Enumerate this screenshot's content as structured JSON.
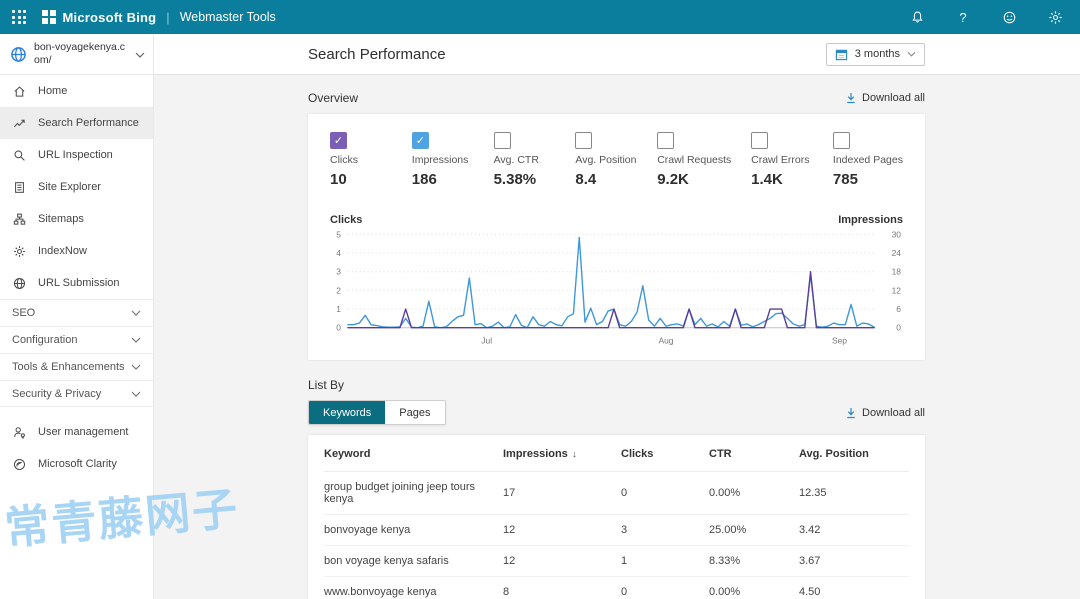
{
  "topbar": {
    "brand": "Microsoft Bing",
    "product": "Webmaster Tools",
    "icons": [
      "notifications-bell",
      "help",
      "feedback-smiley",
      "settings-gear"
    ]
  },
  "sidebar": {
    "site": {
      "name": "bon-voyagekenya.com/",
      "icon": "site-globe-icon"
    },
    "items": [
      {
        "label": "Home",
        "icon": "home-icon",
        "active": false
      },
      {
        "label": "Search Performance",
        "icon": "trend-icon",
        "active": true
      },
      {
        "label": "URL Inspection",
        "icon": "magnifier-icon",
        "active": false
      },
      {
        "label": "Site Explorer",
        "icon": "document-icon",
        "active": false
      },
      {
        "label": "Sitemaps",
        "icon": "sitemap-icon",
        "active": false
      },
      {
        "label": "IndexNow",
        "icon": "gear-small-icon",
        "active": false
      },
      {
        "label": "URL Submission",
        "icon": "globe-icon",
        "active": false
      }
    ],
    "sections": [
      {
        "label": "SEO"
      },
      {
        "label": "Configuration"
      },
      {
        "label": "Tools & Enhancements"
      },
      {
        "label": "Security & Privacy"
      }
    ],
    "footer_items": [
      {
        "label": "User management",
        "icon": "person-icon"
      },
      {
        "label": "Microsoft Clarity",
        "icon": "clarity-icon"
      }
    ]
  },
  "header": {
    "title": "Search Performance",
    "date_range": "3 months"
  },
  "overview": {
    "label": "Overview",
    "download_label": "Download all",
    "metrics": [
      {
        "label": "Clicks",
        "value": "10",
        "checked": true,
        "color": "#7a5fb4"
      },
      {
        "label": "Impressions",
        "value": "186",
        "checked": true,
        "color": "#4ea3e0"
      },
      {
        "label": "Avg. CTR",
        "value": "5.38%",
        "checked": false,
        "color": ""
      },
      {
        "label": "Avg. Position",
        "value": "8.4",
        "checked": false,
        "color": ""
      },
      {
        "label": "Crawl Requests",
        "value": "9.2K",
        "checked": false,
        "color": ""
      },
      {
        "label": "Crawl Errors",
        "value": "1.4K",
        "checked": false,
        "color": ""
      },
      {
        "label": "Indexed Pages",
        "value": "785",
        "checked": false,
        "color": ""
      }
    ]
  },
  "chart_data": {
    "type": "line",
    "title": "Clicks and Impressions over 3 months (daily)",
    "grid": "dotted-horizontal",
    "legend_position": "top-corners",
    "left_axis": {
      "label": "Clicks",
      "ticks": [
        0,
        1,
        2,
        3,
        4,
        5
      ],
      "max": 5
    },
    "right_axis": {
      "label": "Impressions",
      "ticks": [
        0,
        6,
        12,
        18,
        24,
        30
      ],
      "max": 30
    },
    "month_labels": [
      {
        "label": "Jul",
        "day": 24
      },
      {
        "label": "Aug",
        "day": 55
      },
      {
        "label": "Sep",
        "day": 85
      }
    ],
    "series": [
      {
        "name": "Impressions",
        "axis": "right",
        "color": "#3e97d9",
        "values": [
          1,
          1,
          1.5,
          4,
          1,
          0.7,
          0.3,
          0.2,
          0.2,
          0.3,
          3,
          0.2,
          0,
          0.5,
          8.5,
          0.3,
          0,
          0.3,
          2,
          3.5,
          4,
          16,
          1,
          1.3,
          0,
          0.5,
          1.8,
          0,
          0.3,
          4.2,
          0.8,
          0,
          3.5,
          1,
          0.5,
          2,
          1,
          0.6,
          3.5,
          4.5,
          29,
          1.8,
          6.3,
          1,
          2,
          5.4,
          6,
          1,
          0.5,
          2,
          5,
          13.5,
          2.5,
          0.5,
          3,
          0.5,
          1,
          1.2,
          0.5,
          6,
          1,
          3,
          0.5,
          1.2,
          0.3,
          2,
          0.5,
          6,
          0.8,
          1.2,
          0.3,
          1,
          2,
          3,
          4.5,
          4.7,
          3,
          1.2,
          0.5,
          1,
          17,
          0.5,
          0.2,
          0.5,
          1.5,
          1,
          1,
          7.5,
          0.5,
          1.5,
          1.2,
          0.2
        ]
      },
      {
        "name": "Clicks",
        "axis": "left",
        "color": "#5c3d99",
        "values": [
          0,
          0,
          0,
          0,
          0,
          0,
          0,
          0,
          0,
          0,
          1,
          0,
          0,
          0,
          0,
          0,
          0,
          0,
          0,
          0,
          0,
          0,
          0,
          0,
          0,
          0,
          0,
          0,
          0,
          0,
          0,
          0,
          0,
          0,
          0,
          0,
          0,
          0,
          0,
          0,
          0,
          0,
          0,
          0,
          0,
          0,
          1,
          0,
          0,
          0,
          0,
          0,
          0,
          0,
          0,
          0,
          0,
          0,
          0,
          1,
          0,
          0,
          0,
          0,
          0,
          0,
          0,
          1,
          0,
          0,
          0,
          0,
          0,
          1,
          1,
          1,
          0,
          0,
          0,
          0,
          3,
          0,
          0,
          0,
          0,
          0,
          0,
          0,
          0,
          0,
          0,
          0
        ]
      }
    ]
  },
  "list_by": {
    "label": "List By",
    "tabs": [
      {
        "label": "Keywords",
        "active": true
      },
      {
        "label": "Pages",
        "active": false
      }
    ],
    "download_label": "Download all"
  },
  "table": {
    "columns": [
      "Keyword",
      "Impressions",
      "Clicks",
      "CTR",
      "Avg. Position"
    ],
    "sort_column": "Impressions",
    "sort_direction": "desc",
    "rows": [
      [
        "group budget joining jeep tours kenya",
        "17",
        "0",
        "0.00%",
        "12.35"
      ],
      [
        "bonvoyage kenya",
        "12",
        "3",
        "25.00%",
        "3.42"
      ],
      [
        "bon voyage kenya safaris",
        "12",
        "1",
        "8.33%",
        "3.67"
      ],
      [
        "www.bonvoyage kenya",
        "8",
        "0",
        "0.00%",
        "4.50"
      ]
    ]
  },
  "watermark": "常青藤网子",
  "colors": {
    "topbar": "#0b7e9d",
    "accent_blue": "#2a88c8",
    "tab_teal": "#0b6e80",
    "chart_clicks": "#5c3d99",
    "chart_impressions": "#3e97d9",
    "checkbox_clicks": "#7a5fb4",
    "checkbox_impressions": "#4ea3e0",
    "watermark_blue": "#a9d5f4",
    "active_nav_bg": "#ededed",
    "content_bg": "#f3f3f3"
  }
}
